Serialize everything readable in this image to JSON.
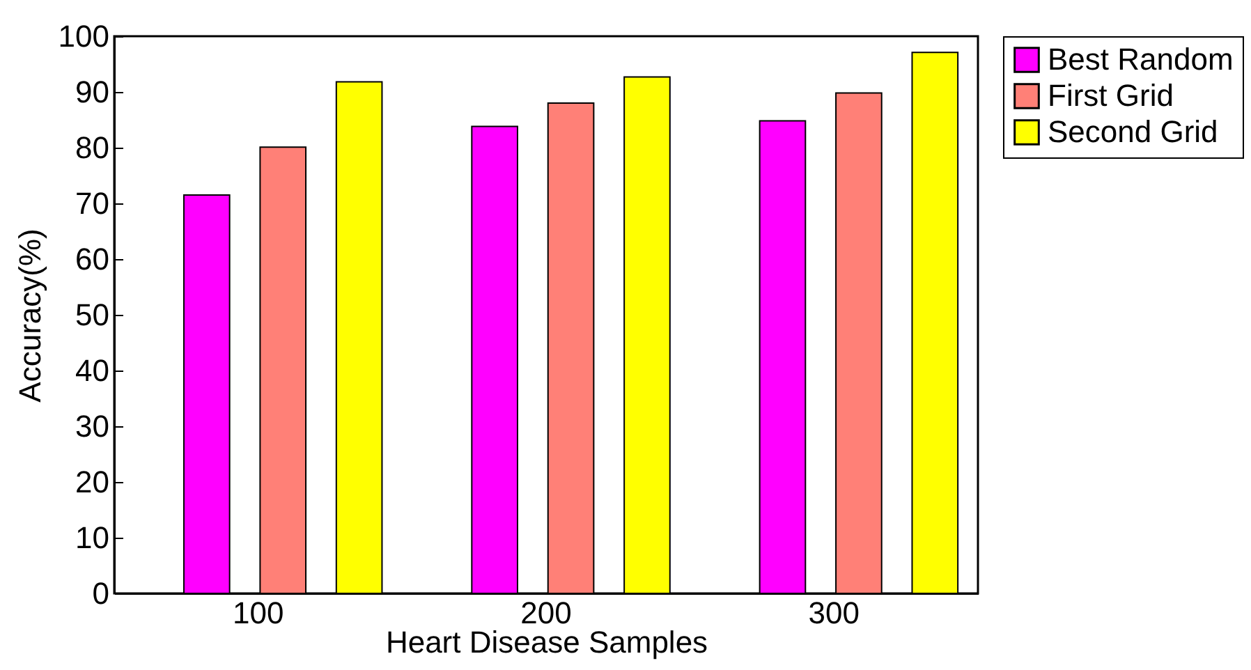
{
  "chart_data": {
    "type": "bar",
    "xlabel": "Heart Disease Samples",
    "ylabel": "Accuracy(%)",
    "categories": [
      "100",
      "200",
      "300"
    ],
    "series": [
      {
        "name": "Best Random",
        "color": "#ff00ff",
        "values": [
          71.5,
          83.8,
          84.8
        ]
      },
      {
        "name": "First Grid",
        "color": "#ff8077",
        "values": [
          80.1,
          88.0,
          89.8
        ]
      },
      {
        "name": "Second Grid",
        "color": "#ffff00",
        "values": [
          91.8,
          92.7,
          97.1
        ]
      }
    ],
    "ylim": [
      0,
      100
    ],
    "yticks": [
      0,
      10,
      20,
      30,
      40,
      50,
      60,
      70,
      80,
      90,
      100
    ],
    "grid": false,
    "legend": "right"
  }
}
